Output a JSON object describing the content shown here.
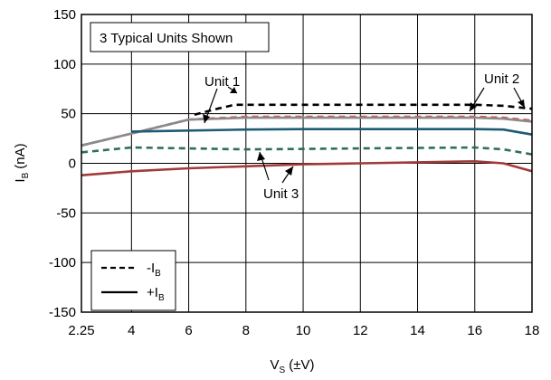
{
  "chart_data": {
    "type": "line",
    "title": "",
    "annotation_box": "3 Typical Units Shown",
    "xlabel": {
      "main": "V",
      "sub": "S",
      "unit": "(±V)"
    },
    "ylabel": {
      "main": "I",
      "sub": "B",
      "unit": "(nA)"
    },
    "xlim": [
      2.25,
      18
    ],
    "ylim": [
      -150,
      150
    ],
    "x_ticks": [
      2.25,
      4,
      6,
      8,
      10,
      12,
      14,
      16,
      18
    ],
    "x_tick_labels": [
      "2.25",
      "4",
      "6",
      "8",
      "10",
      "12",
      "14",
      "16",
      "18"
    ],
    "y_ticks": [
      -150,
      -100,
      -50,
      0,
      50,
      100,
      150
    ],
    "y_tick_labels": [
      "-150",
      "-100",
      "-50",
      "0",
      "50",
      "100",
      "150"
    ],
    "grid": true,
    "legend": {
      "placement": "bottom-left",
      "entries": [
        {
          "main": "-I",
          "sub": "B",
          "dash": true
        },
        {
          "main": "+I",
          "sub": "B",
          "dash": false
        }
      ]
    },
    "colors": {
      "black": "#000000",
      "red": "#e8473a",
      "gray": "#8a8a8a",
      "teal": "#1f5b73",
      "green": "#2e6e55",
      "maroon": "#a33a3a"
    },
    "series": [
      {
        "unit": 2,
        "kind": "-IB",
        "color": "#e8473a",
        "dash": true,
        "x": [
          2.25,
          4,
          6,
          8,
          10,
          12,
          14,
          16,
          17,
          18
        ],
        "y": [
          18,
          30,
          44,
          47,
          47,
          47,
          47,
          47,
          46,
          43
        ]
      },
      {
        "unit": 2,
        "kind": "+IB",
        "color": "#8a8a8a",
        "dash": false,
        "x": [
          2.25,
          4,
          6,
          8,
          10,
          12,
          14,
          16,
          17,
          18
        ],
        "y": [
          18,
          30,
          44,
          46,
          46,
          46,
          46,
          46,
          45,
          42
        ]
      },
      {
        "unit": 1,
        "kind": "-IB",
        "color": "#000000",
        "dash": true,
        "x": [
          6.2,
          7,
          7.6,
          8,
          10,
          12,
          14,
          16,
          17,
          18
        ],
        "y": [
          49,
          55,
          59,
          59,
          59,
          59,
          59,
          59,
          58,
          55
        ]
      },
      {
        "unit": 1,
        "kind": "+IB",
        "color": "#1f5b73",
        "dash": false,
        "x": [
          4,
          6,
          8,
          10,
          12,
          14,
          16,
          17,
          18
        ],
        "y": [
          32,
          33,
          34,
          34.5,
          34.5,
          34.5,
          34.5,
          34,
          29
        ]
      },
      {
        "unit": 3,
        "kind": "-IB",
        "color": "#2e6e55",
        "dash": true,
        "x": [
          2.25,
          4,
          6,
          8,
          10,
          12,
          14,
          16,
          17,
          18
        ],
        "y": [
          11,
          16,
          15,
          14,
          14.5,
          15,
          15.5,
          16,
          14,
          9
        ]
      },
      {
        "unit": 3,
        "kind": "+IB",
        "color": "#a33a3a",
        "dash": false,
        "x": [
          2.25,
          4,
          6,
          8,
          10,
          12,
          14,
          16,
          17,
          18
        ],
        "y": [
          -12,
          -8,
          -5,
          -3,
          -1,
          0,
          1,
          2,
          0,
          -8
        ]
      }
    ],
    "annotations": [
      {
        "text": "Unit 1"
      },
      {
        "text": "Unit 2"
      },
      {
        "text": "Unit 3"
      }
    ]
  }
}
